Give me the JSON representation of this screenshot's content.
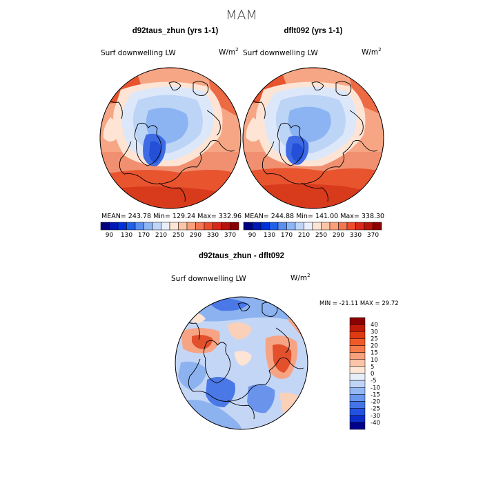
{
  "figure": {
    "title": "MAM"
  },
  "panels": [
    {
      "title": "d92taus_zhun (yrs 1-1)",
      "variable": "Surf downwelling LW",
      "units": "W/m",
      "units_sup": "2",
      "stats": {
        "mean_label": "MEAN=",
        "mean": "243.78",
        "min_label": "Min=",
        "min": "129.24",
        "max_label": "Max=",
        "max": "332.96"
      }
    },
    {
      "title": "dflt092 (yrs 1-1)",
      "variable": "Surf downwelling LW",
      "units": "W/m",
      "units_sup": "2",
      "stats": {
        "mean_label": "MEAN=",
        "mean": "244.88",
        "min_label": "Min=",
        "min": "141.00",
        "max_label": "Max=",
        "max": "338.30"
      }
    },
    {
      "title": "d92taus_zhun - dflt092",
      "variable": "Surf downwelling LW",
      "units": "W/m",
      "units_sup": "2",
      "stats": {
        "min_label": "MIN =",
        "min": "-21.11",
        "max_label": "MAX =",
        "max": "29.72"
      }
    }
  ],
  "horizontal_colorbar": {
    "colors": [
      "#00007f",
      "#0018b4",
      "#0030d8",
      "#2060e8",
      "#5a8ef0",
      "#8db4f5",
      "#bfd5f7",
      "#e8eefa",
      "#fde4d4",
      "#fcc6a6",
      "#f9a07a",
      "#f47650",
      "#ec4d2c",
      "#d9281a",
      "#b8120c",
      "#8c0000"
    ],
    "tick_labels": [
      "90",
      "130",
      "170",
      "210",
      "250",
      "290",
      "330",
      "370"
    ]
  },
  "vertical_colorbar": {
    "colors": [
      "#8b0000",
      "#c01a08",
      "#e03a12",
      "#f05a28",
      "#f67b4a",
      "#f9a07c",
      "#fcc4a8",
      "#fde6d6",
      "#e6eef9",
      "#c0d4f5",
      "#94b6f2",
      "#6a96ee",
      "#4474e8",
      "#2452e0",
      "#0c2ec8",
      "#00008b"
    ],
    "tick_labels": [
      "40",
      "30",
      "25",
      "20",
      "15",
      "10",
      "5",
      "0",
      "-5",
      "-10",
      "-15",
      "-20",
      "-25",
      "-30",
      "-40"
    ]
  },
  "colors": {
    "warm": "#e8542e",
    "warm_deep": "#d83a1c",
    "warm_light": "#f8b294",
    "cream": "#fde4d4",
    "cool_pale": "#dce8fa",
    "cool_light": "#bcd4f6",
    "cool_mid": "#8cb4f2",
    "cool_deep": "#3e6ae4",
    "cool_darker": "#2450d8"
  }
}
